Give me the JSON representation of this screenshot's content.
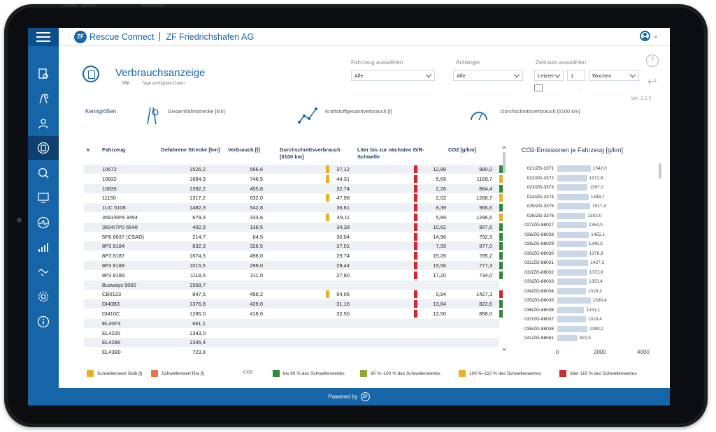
{
  "header": {
    "brand": "Rescue Connect",
    "logo": "ZF",
    "company": "ZF Friedrichshafen AG"
  },
  "page": {
    "title": "Verbrauchsanzeige",
    "days_count": "958",
    "days_label": "Tage verfügbare Daten",
    "version": "Ver. 3.1.2"
  },
  "filters": {
    "vehicle": {
      "label": "Fahrzeug auswählen",
      "value": "Alle"
    },
    "trailer": {
      "label": "Anhänger",
      "value": "Alle"
    },
    "period": {
      "label": "Zeitraum auswählen",
      "mode": "Letzter",
      "count": "1",
      "unit": "Wochen"
    },
    "dash": "-"
  },
  "kpis": {
    "title": "Kenngrößen",
    "distance": "Gesamtfahrtstrecke [km]",
    "fuel": "Kraftstoffgesamtverbrauch [l]",
    "avg": "Durchschnittsverbrauch [l/100 km]"
  },
  "table": {
    "headers": {
      "num": "#",
      "vehicle": "Fahrzeug",
      "dist": "Gefahrene Strecke [km]",
      "cons": "Verbrauch [l]",
      "avg": "Durchschnittsverbrauch [l/100 km]",
      "lit": "Liter bis zur nächsten G/R-Schwelle",
      "co2": "CO2 [g/km]"
    },
    "rows": [
      {
        "vehicle": "10672",
        "dist": "1526,2",
        "cons": "566,6",
        "avg": "37,12",
        "lit": "12,88",
        "co2": "980,0",
        "f1": "#e8b12b",
        "f2": "#d7262a",
        "f3": "#2e8b3a"
      },
      {
        "vehicle": "10832",
        "dist": "1684,9",
        "cons": "746,5",
        "avg": "44,31",
        "lit": "5,69",
        "co2": "1169,7",
        "f1": "#e8b12b",
        "f2": "#d7262a",
        "f3": "#e8b12b"
      },
      {
        "vehicle": "10835",
        "dist": "1392,2",
        "cons": "455,8",
        "avg": "32,74",
        "lit": "2,26",
        "co2": "864,4",
        "f1": "",
        "f2": "#d7262a",
        "f3": "#2e8b3a"
      },
      {
        "vehicle": "11150",
        "dist": "1317,2",
        "cons": "632,0",
        "avg": "47,98",
        "lit": "2,02",
        "co2": "1266,7",
        "f1": "#e8b12b",
        "f2": "#d7262a",
        "f3": "#e8b12b"
      },
      {
        "vehicle": "1UC 5106",
        "dist": "1482,3",
        "cons": "542,8",
        "avg": "36,61",
        "lit": "8,39",
        "co2": "966,6",
        "f1": "",
        "f2": "#d7262a",
        "f3": "#2e8b3a"
      },
      {
        "vehicle": "3591/6P4 3454",
        "dist": "679,3",
        "cons": "333,6",
        "avg": "49,11",
        "lit": "5,89",
        "co2": "1296,6",
        "f1": "#e8b12b",
        "f2": "#d7262a",
        "f3": "#e8b12b"
      },
      {
        "vehicle": "3604/7P0 6548",
        "dist": "402,9",
        "cons": "138,5",
        "avg": "34,38",
        "lit": "10,62",
        "co2": "907,6",
        "f1": "",
        "f2": "#d7262a",
        "f3": "#2e8b3a"
      },
      {
        "vehicle": "5P6 8637 (CSAD)",
        "dist": "214,7",
        "cons": "64,5",
        "avg": "30,04",
        "lit": "14,96",
        "co2": "792,9",
        "f1": "",
        "f2": "#d7262a",
        "f3": "#2e8b3a"
      },
      {
        "vehicle": "8P3 8184",
        "dist": "832,3",
        "cons": "326,5",
        "avg": "37,01",
        "lit": "7,99",
        "co2": "977,0",
        "f1": "",
        "f2": "#d7262a",
        "f3": "#2e8b3a"
      },
      {
        "vehicle": "8P3 8187",
        "dist": "1674,5",
        "cons": "498,0",
        "avg": "29,74",
        "lit": "15,26",
        "co2": "785,2",
        "f1": "",
        "f2": "#d7262a",
        "f3": "#2e8b3a"
      },
      {
        "vehicle": "8P3 8188",
        "dist": "1015,5",
        "cons": "299,0",
        "avg": "29,44",
        "lit": "15,56",
        "co2": "777,3",
        "f1": "",
        "f2": "#d7262a",
        "f3": "#2e8b3a"
      },
      {
        "vehicle": "8P3 8189",
        "dist": "1118,6",
        "cons": "311,0",
        "avg": "27,80",
        "lit": "17,20",
        "co2": "734,0",
        "f1": "",
        "f2": "#d7262a",
        "f3": "#2e8b3a"
      },
      {
        "vehicle": "Busways 5000",
        "dist": "1558,7",
        "cons": "",
        "avg": "",
        "lit": "",
        "co2": "",
        "f1": "",
        "f2": "",
        "f3": ""
      },
      {
        "vehicle": "CB0123",
        "dist": "847,5",
        "cons": "458,2",
        "avg": "54,06",
        "lit": "0,94",
        "co2": "1427,3",
        "f1": "#e8b12b",
        "f2": "#d7262a",
        "f3": "#d7262a"
      },
      {
        "vehicle": "DI40B3",
        "dist": "1376,8",
        "cons": "429,0",
        "avg": "31,16",
        "lit": "13,84",
        "co2": "822,6",
        "f1": "",
        "f2": "#d7262a",
        "f3": "#2e8b3a"
      },
      {
        "vehicle": "DI410C",
        "dist": "1286,0",
        "cons": "418,0",
        "avg": "32,50",
        "lit": "12,50",
        "co2": "858,0",
        "f1": "",
        "f2": "#d7262a",
        "f3": "#2e8b3a"
      },
      {
        "vehicle": "EL40F3",
        "dist": "661,1",
        "cons": "",
        "avg": "",
        "lit": "",
        "co2": "",
        "f1": "",
        "f2": "",
        "f3": ""
      },
      {
        "vehicle": "EL4226",
        "dist": "1343,0",
        "cons": "",
        "avg": "",
        "lit": "",
        "co2": "",
        "f1": "",
        "f2": "",
        "f3": ""
      },
      {
        "vehicle": "EL4288",
        "dist": "1345,4",
        "cons": "",
        "avg": "",
        "lit": "",
        "co2": "",
        "f1": "",
        "f2": "",
        "f3": ""
      },
      {
        "vehicle": "EL43B0",
        "dist": "723,8",
        "cons": "",
        "avg": "",
        "lit": "",
        "co2": "",
        "f1": "",
        "f2": "",
        "f3": ""
      }
    ]
  },
  "chart_data": {
    "type": "bar",
    "title": "CO2-Emissionen je Fahrzeug [g/km]",
    "categories": [
      "021/ZG-3371",
      "022/ZG-3372",
      "023/ZG-3373",
      "024/ZG-3374",
      "025/ZG-3375",
      "026/ZG-3376",
      "027/ZG-88027",
      "028/ZG-88028",
      "029/ZG-88029",
      "030/ZG-88030",
      "031/ZG-88031",
      "032/ZG-88032",
      "033/ZG-88033",
      "034/ZG-88034",
      "035/ZG-88035",
      "036/ZG-88036",
      "037/ZG-88037",
      "038/ZG-88038",
      "041/ZG-88041"
    ],
    "value_labels": [
      "1542,0",
      "1372,8",
      "1397,2",
      "1448,7",
      "1517,4",
      "1302,0",
      "1354,0",
      "1455,1",
      "1348,3",
      "1378,9",
      "1427,3",
      "1373,9",
      "1353,4",
      "1316,3",
      "1538,4",
      "1241,1",
      "1316,4",
      "1390,2",
      "922,5"
    ],
    "values": [
      1542.0,
      1372.8,
      1397.2,
      1448.7,
      1517.4,
      1302.0,
      1354.0,
      1455.1,
      1348.3,
      1378.9,
      1427.3,
      1373.9,
      1353.4,
      1316.3,
      1538.4,
      1241.1,
      1316.4,
      1390.2,
      922.5
    ],
    "xlim": [
      0,
      4000
    ],
    "xticks": [
      "0",
      "2000",
      "4000"
    ],
    "bar_color": "#c9d7e6"
  },
  "legend": {
    "gelb": "Schwellenwert Gelb [l]",
    "rot": "Schwellenwert Rot [l]",
    "co2": "CO2",
    "l90": "bis 90 % des Schwellenwertes",
    "l90_100": "90 %–100 % des Schwellenwertes",
    "l100_110": "100 %–110 % des Schwellenwertes",
    "l110": "über 110 % des Schwellenwertes",
    "colors": {
      "gelb": "#e8b12b",
      "rot": "#e8734a",
      "l90": "#2e8b3a",
      "l90_100": "#9aa23a",
      "l100_110": "#e8b12b",
      "l110": "#c9302c"
    }
  },
  "footer": {
    "text": "Powered by",
    "logo": "ZF"
  },
  "sidebar": {
    "expand": "»"
  }
}
